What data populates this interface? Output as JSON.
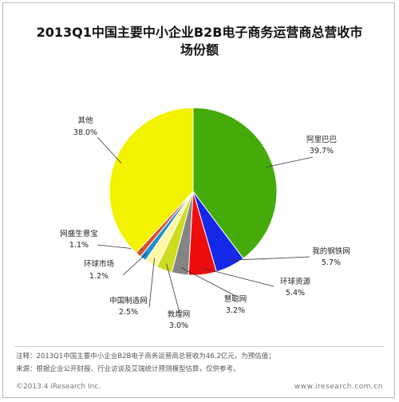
{
  "chart_data": {
    "type": "pie",
    "title_line1": "2013Q1中国主要中小企业B2B电子商务运营商总营收市",
    "title_line2": "场份额",
    "unit": "%",
    "slices": [
      {
        "label": "阿里巴巴",
        "value": 39.7,
        "value_text": "39.7%",
        "color": "#44ab0a"
      },
      {
        "label": "我的钢铁网",
        "value": 5.7,
        "value_text": "5.7%",
        "color": "#1428e8"
      },
      {
        "label": "环球资源",
        "value": 5.4,
        "value_text": "5.4%",
        "color": "#ee0d0d"
      },
      {
        "label": "慧聪网",
        "value": 3.2,
        "value_text": "3.2%",
        "color": "#848484"
      },
      {
        "label": "敦煌网",
        "value": 3.0,
        "value_text": "3.0%",
        "color": "#cddc1e"
      },
      {
        "label": "中国制造网",
        "value": 2.5,
        "value_text": "2.5%",
        "color": "#fff6a6"
      },
      {
        "label": "环球市场",
        "value": 1.2,
        "value_text": "1.2%",
        "color": "#1f8fd0"
      },
      {
        "label": "网盛生意宝",
        "value": 1.1,
        "value_text": "1.1%",
        "color": "#d9532e"
      },
      {
        "label": "其他",
        "value": 38.0,
        "value_text": "38.0%",
        "color": "#f2f201"
      }
    ]
  },
  "footer": {
    "note": "注释：2013Q1中国主要中小企业B2B电子商务运营商总营收为46.2亿元，为预估值；",
    "source": "来源：根据企业公开财报、行业访谈及艾瑞统计预测模型估算，仅供参考。",
    "copyright": "©2013.4 iResearch Inc.",
    "website": "www.iresearch.com.cn"
  }
}
